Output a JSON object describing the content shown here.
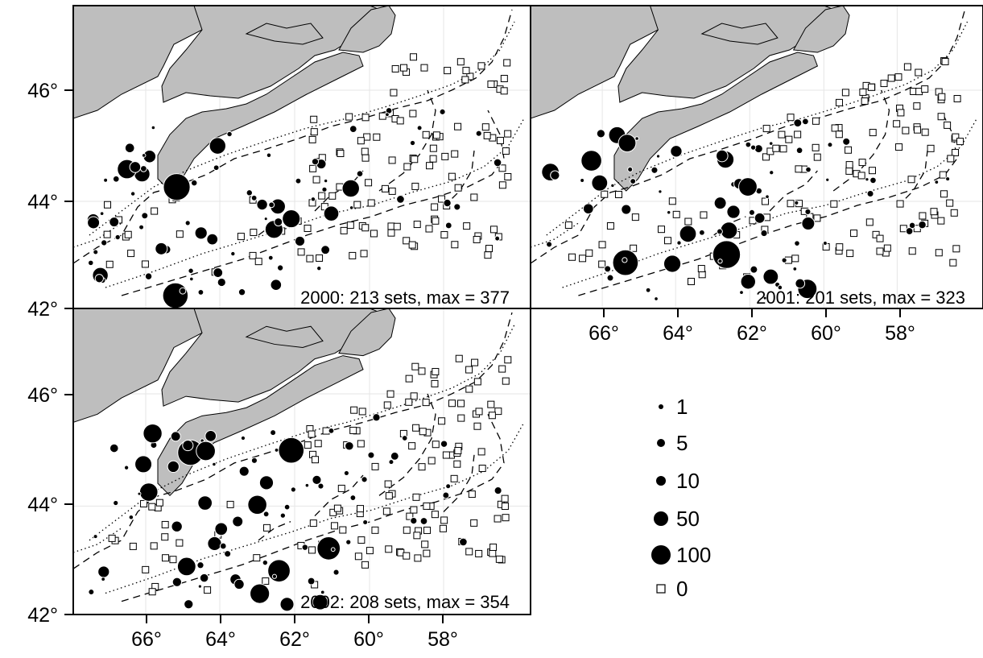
{
  "figure": {
    "land_color": "#bebebe",
    "water_color": "#ffffff",
    "catch_marker_color": "#000000",
    "zero_marker_color": "#ffffff"
  },
  "axes": {
    "x_ticks": [
      "66°",
      "64°",
      "62°",
      "60°",
      "58°"
    ],
    "y_ticks": [
      "46°",
      "44°",
      "42°"
    ]
  },
  "panels": [
    {
      "year": "2000",
      "caption": "2000: 213 sets, max = 377",
      "sets": 213,
      "max": 377
    },
    {
      "year": "2001",
      "caption": "2001: 201 sets, max = 323",
      "sets": 201,
      "max": 323
    },
    {
      "year": "2002",
      "caption": "2002: 208 sets, max = 354",
      "sets": 208,
      "max": 354
    }
  ],
  "legend": {
    "items": [
      {
        "label": "1",
        "value": 1,
        "marker": "circle"
      },
      {
        "label": "5",
        "value": 5,
        "marker": "circle"
      },
      {
        "label": "10",
        "value": 10,
        "marker": "circle"
      },
      {
        "label": "50",
        "value": 50,
        "marker": "circle"
      },
      {
        "label": "100",
        "value": 100,
        "marker": "circle"
      },
      {
        "label": "0",
        "value": 0,
        "marker": "square"
      }
    ]
  }
}
